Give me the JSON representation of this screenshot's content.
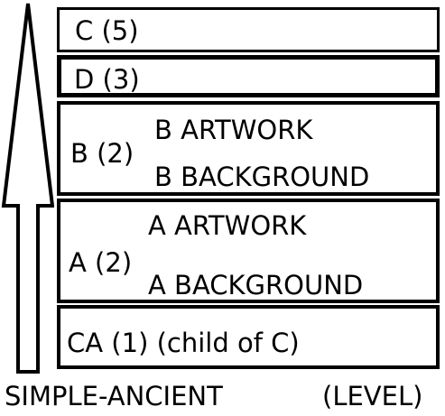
{
  "layers": [
    {
      "label": "C (5)",
      "sublabels": []
    },
    {
      "label": "D (3)",
      "sublabels": []
    },
    {
      "label": "B (2)",
      "sublabels": [
        "B ARTWORK",
        "B BACKGROUND"
      ]
    },
    {
      "label": "A (2)",
      "sublabels": [
        "A ARTWORK",
        "A BACKGROUND"
      ]
    },
    {
      "label": "CA (1) (child of C)",
      "sublabels": []
    }
  ],
  "axis": {
    "label": "SIMPLE-ANCIENT",
    "level_label": "(LEVEL)",
    "direction": "up"
  },
  "colors": {
    "stroke": "#000000",
    "background": "#ffffff"
  }
}
